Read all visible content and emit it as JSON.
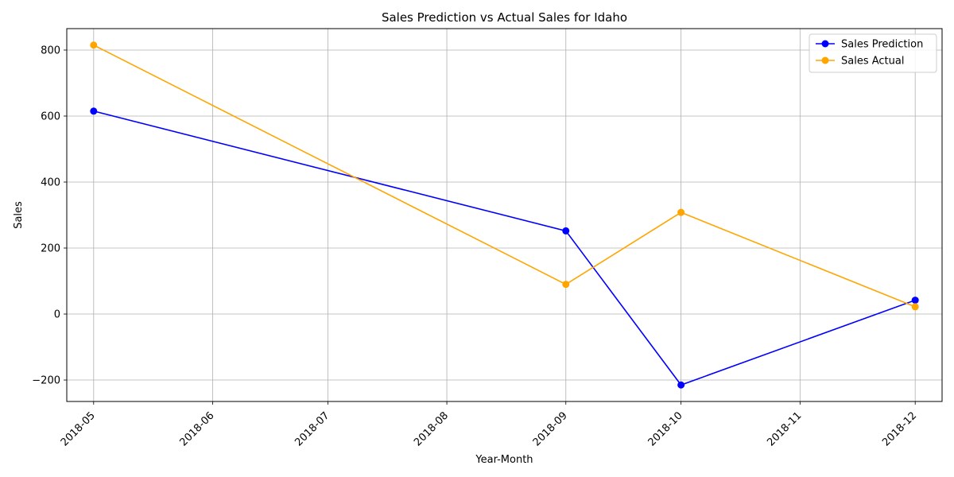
{
  "chart_data": {
    "type": "line",
    "title": "Sales Prediction vs Actual Sales for Idaho",
    "xlabel": "Year-Month",
    "ylabel": "Sales",
    "x_ticks": [
      "2018-05",
      "2018-06",
      "2018-07",
      "2018-08",
      "2018-09",
      "2018-10",
      "2018-11",
      "2018-12"
    ],
    "xlim": [
      "2018-04-24",
      "2018-12-08"
    ],
    "ylim": [
      -265,
      865
    ],
    "y_ticks": [
      -200,
      0,
      200,
      400,
      600,
      800
    ],
    "y_tick_labels": [
      "−200",
      "0",
      "200",
      "400",
      "600",
      "800"
    ],
    "grid": true,
    "legend_position": "top-right",
    "series": [
      {
        "name": "Sales Prediction",
        "color": "#0000ff",
        "marker": "circle",
        "x": [
          "2018-05-01",
          "2018-09-01",
          "2018-10-01",
          "2018-12-01"
        ],
        "y": [
          615,
          252,
          -215,
          42
        ]
      },
      {
        "name": "Sales Actual",
        "color": "#ffa500",
        "marker": "circle",
        "x": [
          "2018-05-01",
          "2018-09-01",
          "2018-10-01",
          "2018-12-01"
        ],
        "y": [
          815,
          90,
          308,
          22
        ]
      }
    ]
  }
}
